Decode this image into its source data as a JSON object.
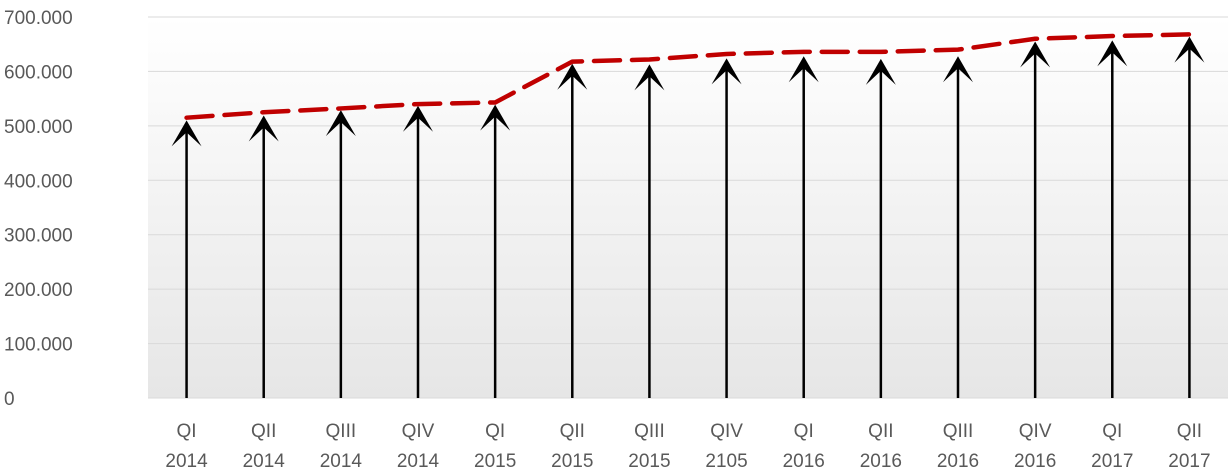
{
  "chart_data": {
    "type": "line",
    "title": "",
    "xlabel": "",
    "ylabel": "",
    "categories": [
      [
        "QI",
        "2014"
      ],
      [
        "QII",
        "2014"
      ],
      [
        "QIII",
        "2014"
      ],
      [
        "QIV",
        "2014"
      ],
      [
        "QI",
        "2015"
      ],
      [
        "QII",
        "2015"
      ],
      [
        "QIII",
        "2015"
      ],
      [
        "QIV",
        "2105"
      ],
      [
        "QI",
        "2016"
      ],
      [
        "QII",
        "2016"
      ],
      [
        "QIII",
        "2016"
      ],
      [
        "QIV",
        "2016"
      ],
      [
        "QI",
        "2017"
      ],
      [
        "QII",
        "2017"
      ]
    ],
    "series": [
      {
        "values": [
          515000,
          525000,
          532000,
          540000,
          543000,
          618000,
          622000,
          632000,
          636000,
          636000,
          640000,
          660000,
          665000,
          668000
        ],
        "style": "dashed",
        "color": "#C00000"
      }
    ],
    "arrows": {
      "values": [
        510000,
        519000,
        529000,
        537000,
        539000,
        614000,
        613000,
        624000,
        628000,
        623000,
        628000,
        655000,
        657000,
        664000
      ],
      "color": "#000000"
    },
    "ylim": [
      0,
      700000
    ],
    "yticks": [
      0,
      100000,
      200000,
      300000,
      400000,
      500000,
      600000,
      700000
    ],
    "ytick_labels": [
      "0",
      "100.000",
      "200.000",
      "300.000",
      "400.000",
      "500.000",
      "600.000",
      "700.000"
    ],
    "grid": true,
    "legend": "none",
    "colors": {
      "grid": "#D9D9D9",
      "tick_text": "#595959",
      "background_top": "#FFFFFF",
      "background_bottom": "#E6E6E6"
    }
  }
}
